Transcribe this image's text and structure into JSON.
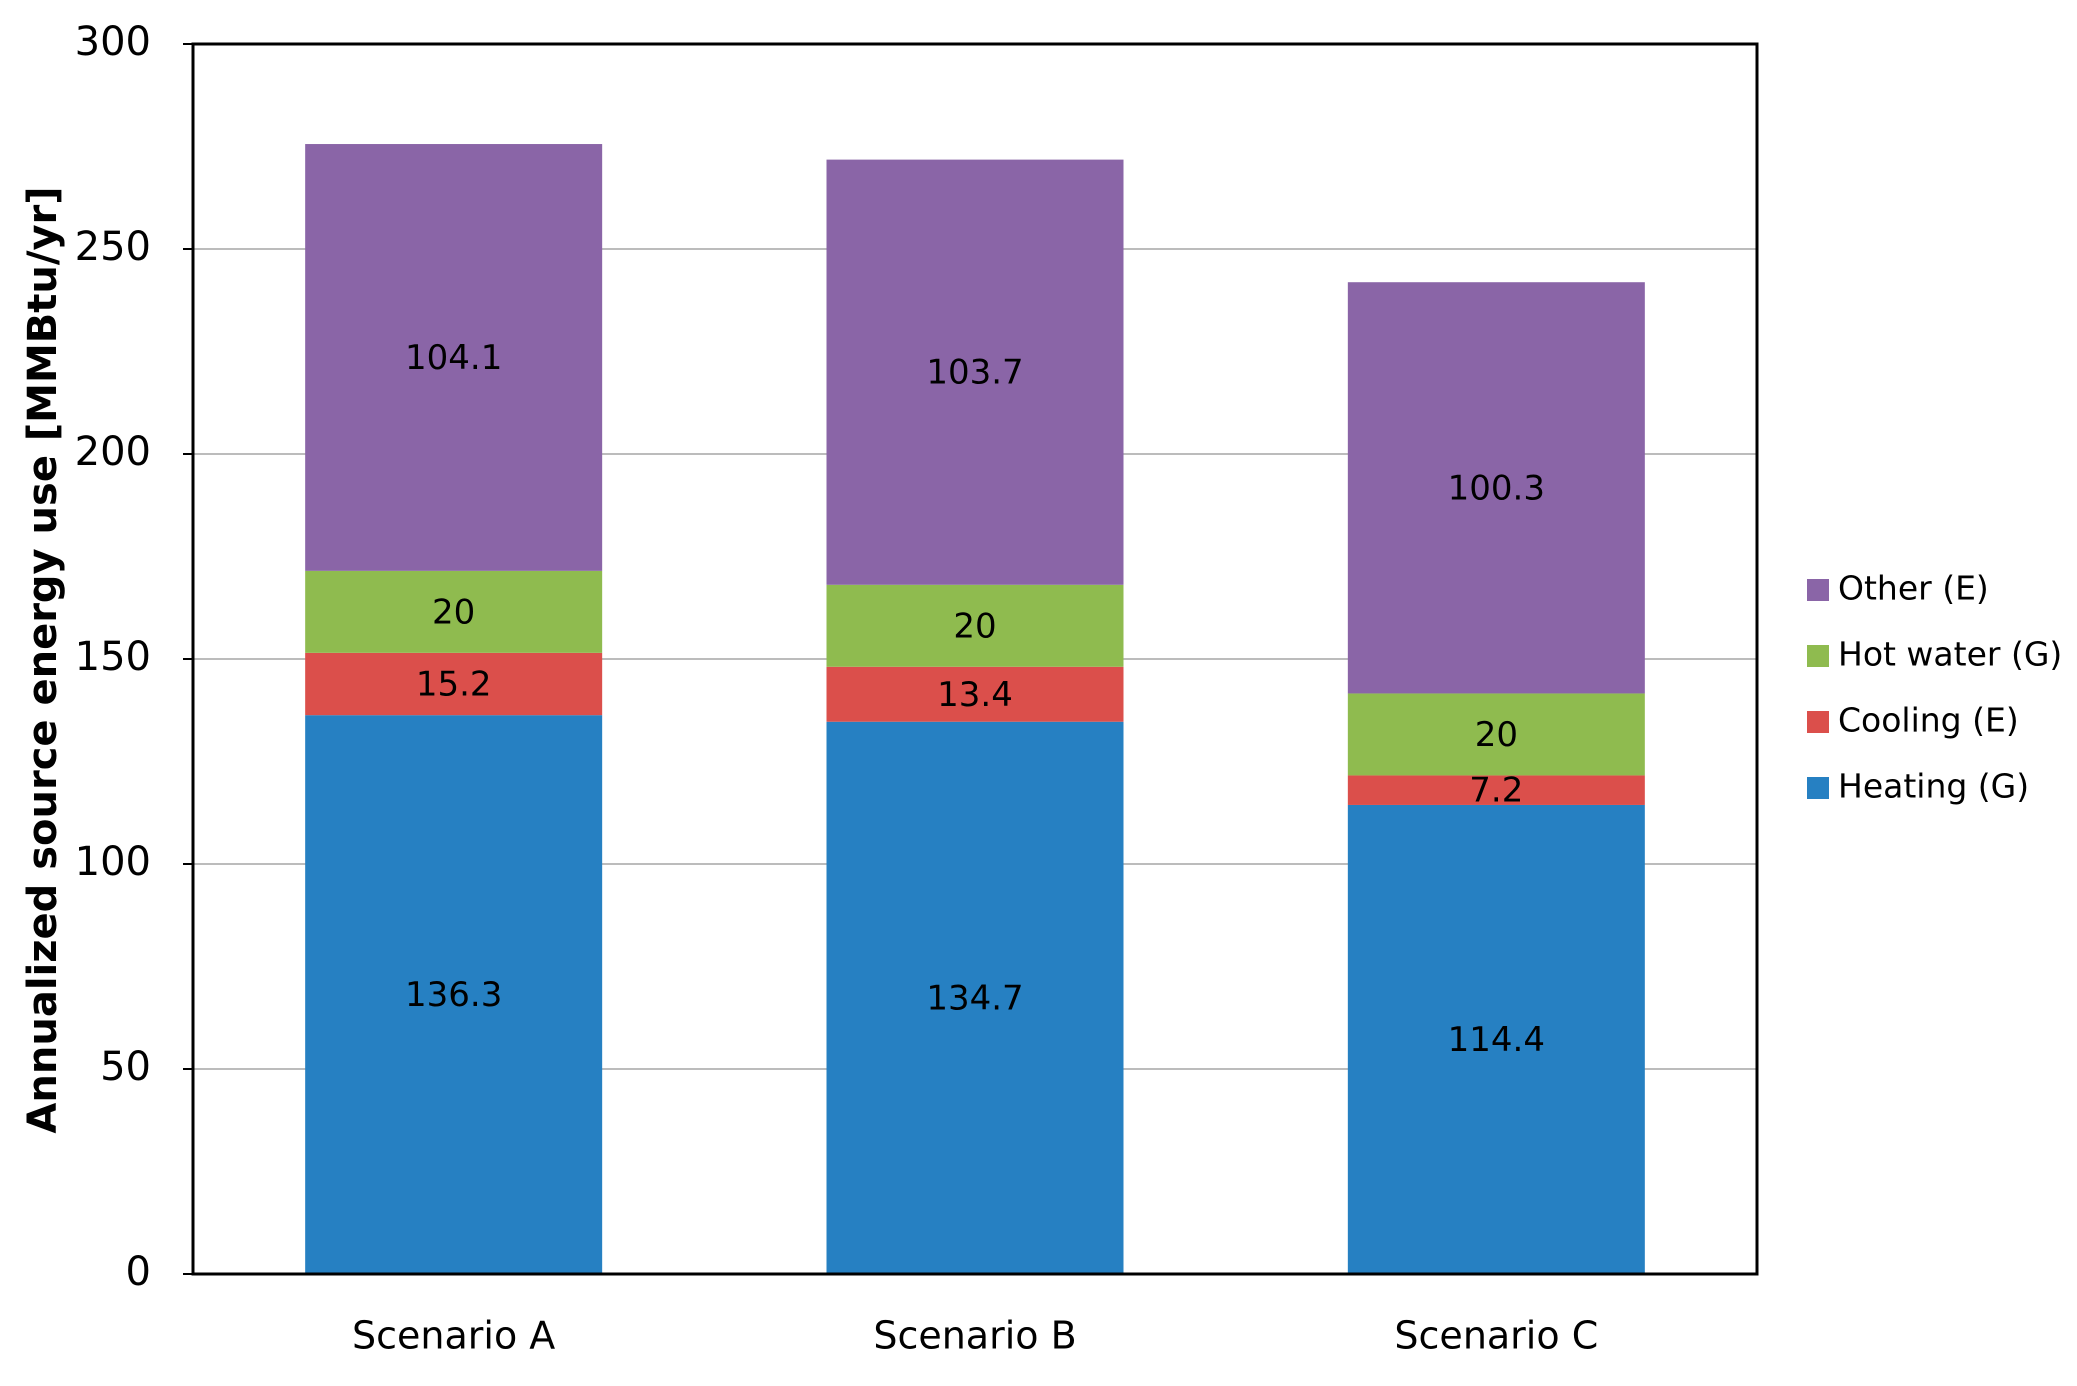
{
  "chart_data": {
    "type": "bar",
    "stacked": true,
    "title": "",
    "xlabel": "",
    "ylabel": "Annualized source energy use [MMBtu/yr]",
    "ylim": [
      0,
      300
    ],
    "yticks": [
      0,
      50,
      100,
      150,
      200,
      250,
      300
    ],
    "grid": true,
    "legend_position": "right",
    "categories": [
      "Scenario A",
      "Scenario B",
      "Scenario C"
    ],
    "series": [
      {
        "name": "Heating (G)",
        "color": "#2680c2",
        "values": [
          136.3,
          134.7,
          114.4
        ],
        "labels": [
          "136.3",
          "134.7",
          "114.4"
        ]
      },
      {
        "name": "Cooling (E)",
        "color": "#db4f4b",
        "values": [
          15.2,
          13.4,
          7.2
        ],
        "labels": [
          "15.2",
          "13.4",
          "7.2"
        ]
      },
      {
        "name": "Hot water (G)",
        "color": "#8fbb4f",
        "values": [
          20,
          20,
          20
        ],
        "labels": [
          "20",
          "20",
          "20"
        ]
      },
      {
        "name": "Other (E)",
        "color": "#8a65a7",
        "values": [
          104.1,
          103.7,
          100.3
        ],
        "labels": [
          "104.1",
          "103.7",
          "100.3"
        ]
      }
    ]
  }
}
